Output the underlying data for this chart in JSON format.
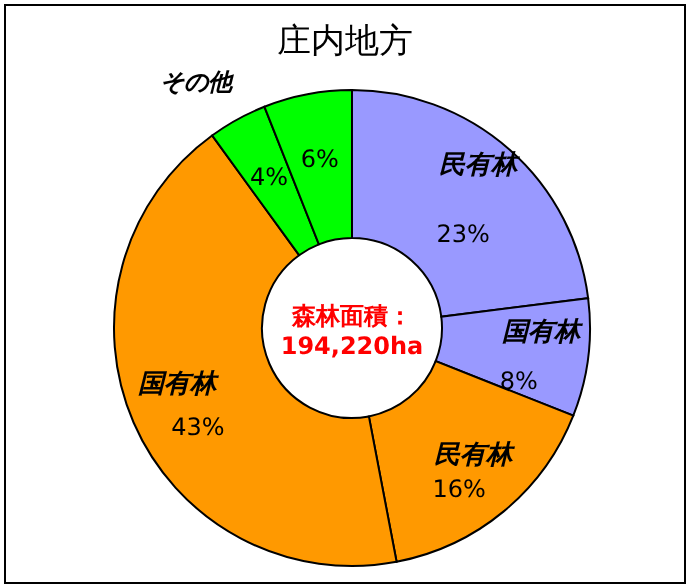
{
  "chart_data": {
    "type": "donut",
    "title": "庄内地方",
    "categories": [
      "民有林",
      "国有林",
      "民有林",
      "国有林",
      "その他",
      null
    ],
    "values": [
      23,
      8,
      16,
      43,
      4,
      6
    ],
    "colors": [
      "#9999ff",
      "#9999ff",
      "#ff9900",
      "#ff9900",
      "#00ff00",
      "#00ff00"
    ],
    "value_labels": [
      "23%",
      "8%",
      "16%",
      "43%",
      "4%",
      "6%"
    ],
    "annotations": [
      "森林面積：",
      "194,220ha"
    ]
  }
}
